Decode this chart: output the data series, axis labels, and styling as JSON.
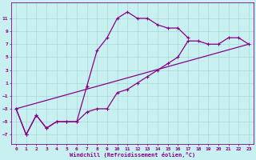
{
  "xlabel": "Windchill (Refroidissement éolien,°C)",
  "bg_color": "#c8f0f0",
  "grid_color": "#a8d8d8",
  "line_color": "#880088",
  "xlim": [
    -0.5,
    23.5
  ],
  "ylim": [
    -8.5,
    13.5
  ],
  "xticks": [
    0,
    1,
    2,
    3,
    4,
    5,
    6,
    7,
    8,
    9,
    10,
    11,
    12,
    13,
    14,
    15,
    16,
    17,
    18,
    19,
    20,
    21,
    22,
    23
  ],
  "yticks": [
    -7,
    -5,
    -3,
    -1,
    1,
    3,
    5,
    7,
    9,
    11
  ],
  "series1_x": [
    0,
    1,
    2,
    3,
    4,
    5,
    6,
    7,
    8,
    9,
    10,
    11,
    12,
    13,
    14,
    15,
    16,
    17
  ],
  "series1_y": [
    -3,
    -7,
    -4,
    -6,
    -5,
    -5,
    -5,
    0.5,
    6,
    8,
    11,
    12,
    11,
    11,
    10,
    9.5,
    9.5,
    8
  ],
  "series2_x": [
    0,
    1,
    2,
    3,
    4,
    5,
    6,
    7,
    8,
    9,
    10,
    11,
    12,
    13,
    14,
    15,
    16,
    17,
    18,
    19,
    20,
    21,
    22,
    23
  ],
  "series2_y": [
    -3,
    -7,
    -4,
    -6,
    -5,
    -5,
    -5,
    -3.5,
    -3,
    -3,
    -0.5,
    0,
    1,
    2,
    3,
    4,
    5,
    7.5,
    7.5,
    7,
    7,
    8,
    8,
    7
  ],
  "series3_x": [
    0,
    23
  ],
  "series3_y": [
    -3,
    7
  ],
  "marker_size": 2.5,
  "linewidth": 0.9
}
